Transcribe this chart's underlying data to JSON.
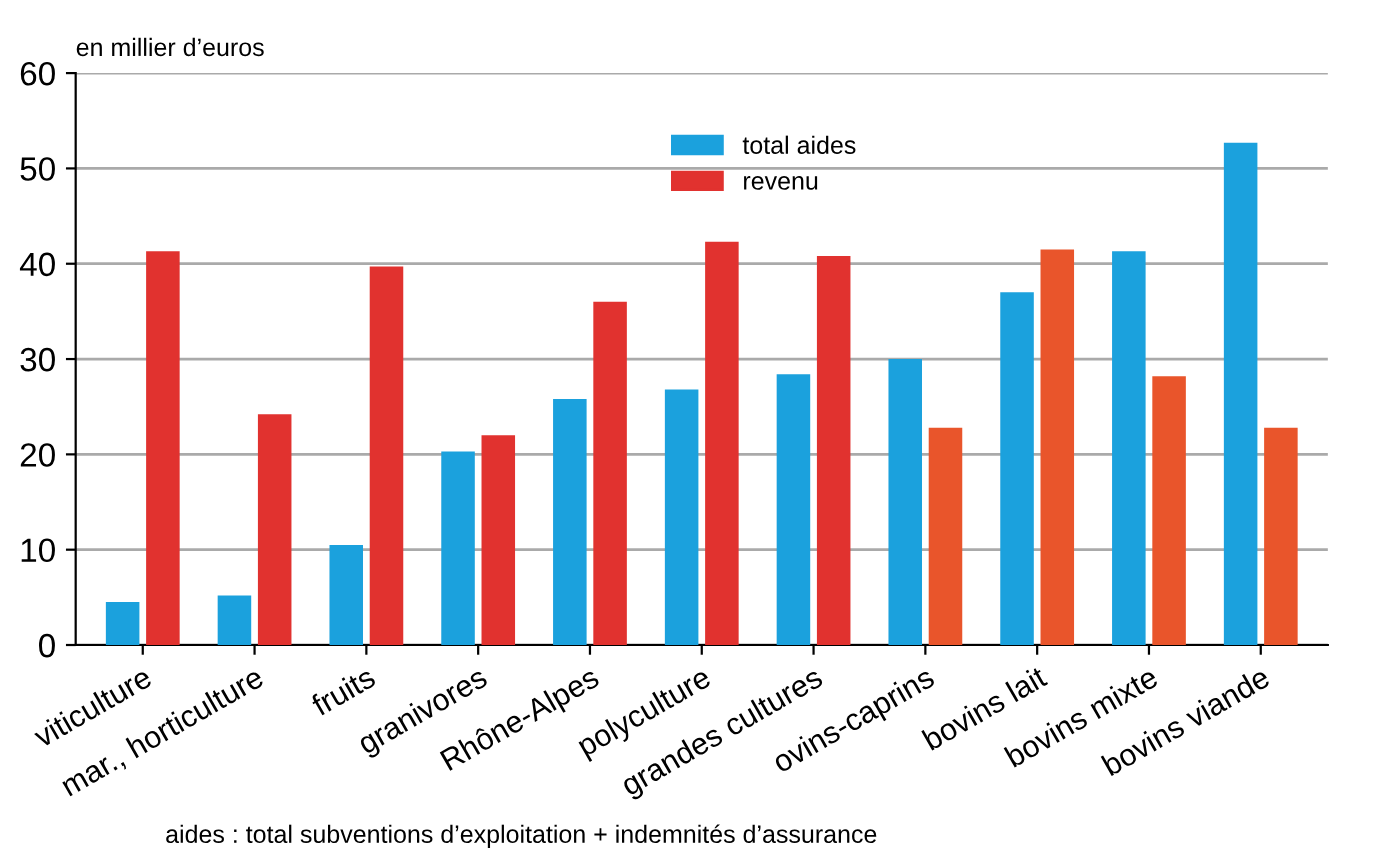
{
  "chart_data": {
    "type": "bar",
    "ylabel": "en millier d’euros",
    "categories": [
      "viticulture",
      "mar., horticulture",
      "fruits",
      "granivores",
      "Rhône-Alpes",
      "polyculture",
      "grandes cultures",
      "ovins-caprins",
      "bovins lait",
      "bovins mixte",
      "bovins viande"
    ],
    "series": [
      {
        "name": "total aides",
        "color": "#1ba1dd",
        "values": [
          4.5,
          5.2,
          10.5,
          20.3,
          25.8,
          26.8,
          28.4,
          30.0,
          37.0,
          41.3,
          52.7
        ]
      },
      {
        "name": "revenu",
        "color": "#e1322f",
        "colors": [
          "#e1322f",
          "#e1322f",
          "#e1322f",
          "#e1322f",
          "#e1322f",
          "#e1322f",
          "#e1322f",
          "#e9552b",
          "#e9552b",
          "#e9552b",
          "#e9552b"
        ],
        "values": [
          41.3,
          24.2,
          39.7,
          22.0,
          36.0,
          42.3,
          40.8,
          22.8,
          41.5,
          28.2,
          22.8
        ]
      }
    ],
    "ylim": [
      0,
      60
    ],
    "yticks": [
      0,
      10,
      20,
      30,
      40,
      50,
      60
    ],
    "grid": "y",
    "legend": "top",
    "annotations": [
      "aides : total subventions d’exploitation + indemnités d’assurance"
    ]
  }
}
